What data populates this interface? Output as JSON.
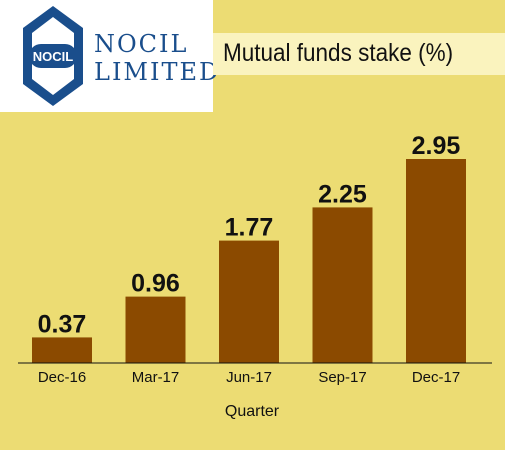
{
  "logo": {
    "badge_text": "NOCIL",
    "name_line1": "NOCIL",
    "name_line2": "LIMITED",
    "color": "#1a4e8c"
  },
  "title": "Mutual funds stake (%)",
  "chart_data": {
    "type": "bar",
    "categories": [
      "Dec-16",
      "Mar-17",
      "Jun-17",
      "Sep-17",
      "Dec-17"
    ],
    "values": [
      0.37,
      0.96,
      1.77,
      2.25,
      2.95
    ],
    "value_labels": [
      "0.37",
      "0.96",
      "1.77",
      "2.25",
      "2.95"
    ],
    "title": "Mutual funds stake (%)",
    "xlabel": "Quarter",
    "ylabel": "",
    "ylim": [
      0,
      2.95
    ],
    "grid": false,
    "bar_color": "#8b4a00"
  }
}
